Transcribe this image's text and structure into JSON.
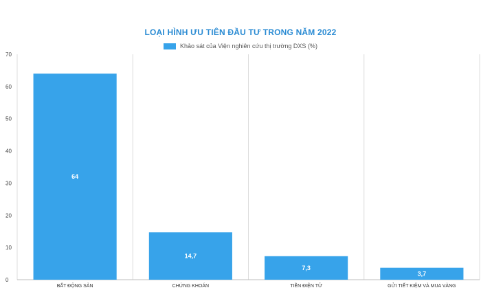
{
  "chart_data": {
    "type": "bar",
    "title": "LOẠI HÌNH ƯU TIÊN ĐẦU TƯ TRONG NĂM 2022",
    "categories": [
      "BẤT ĐỘNG SẢN",
      "CHỨNG KHOÁN",
      "TIỀN ĐIỆN TỬ",
      "GỬI TIẾT KIỆM VÀ MUA VÀNG"
    ],
    "series": [
      {
        "name": "Khảo sát của Viện nghiên cứu thị trường DXS (%)",
        "values": [
          64,
          14.7,
          7.3,
          3.7
        ],
        "labels": [
          "64",
          "14,7",
          "7,3",
          "3,7"
        ]
      }
    ],
    "ylim": [
      0,
      70
    ],
    "yticks": [
      0,
      10,
      20,
      30,
      40,
      50,
      60,
      70
    ],
    "grid": "vertical category separators",
    "legend_position": "top-center",
    "color": "#37a3ea"
  }
}
